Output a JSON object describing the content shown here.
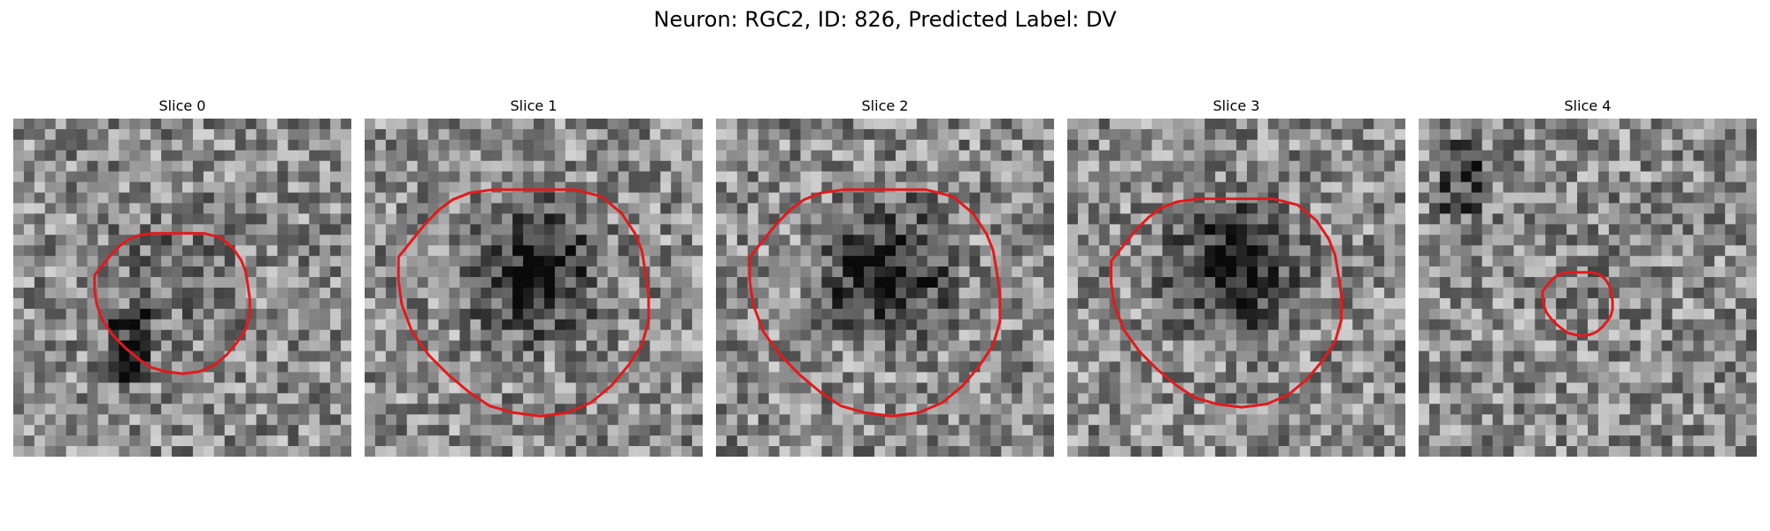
{
  "figure": {
    "title": "Neuron: RGC2, ID: 826, Predicted Label: DV"
  },
  "slices": [
    {
      "label": "Slice 0",
      "contour_scale": 0.62,
      "dark_center": 0.45,
      "dark_strength": 0.22
    },
    {
      "label": "Slice 1",
      "contour_scale": 1.0,
      "dark_center": 0.45,
      "dark_strength": 0.75
    },
    {
      "label": "Slice 2",
      "contour_scale": 1.0,
      "dark_center": 0.45,
      "dark_strength": 0.8
    },
    {
      "label": "Slice 3",
      "contour_scale": 0.92,
      "dark_center": 0.45,
      "dark_strength": 0.78
    },
    {
      "label": "Slice 4",
      "contour_scale": 0.28,
      "dark_center": 0.45,
      "dark_strength": 0.05
    }
  ],
  "colors": {
    "contour": "#e31a1c",
    "colormap": "gray"
  }
}
